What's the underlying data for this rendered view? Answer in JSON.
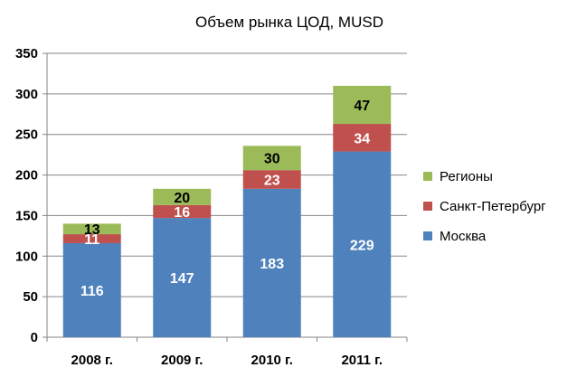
{
  "chart_data": {
    "type": "bar",
    "stacked": true,
    "title": "Объем рынка ЦОД, MUSD",
    "xlabel": "",
    "ylabel": "",
    "categories": [
      "2008 г.",
      "2009 г.",
      "2010 г.",
      "2011 г."
    ],
    "ylim": [
      0,
      350
    ],
    "yticks": [
      0,
      50,
      100,
      150,
      200,
      250,
      300,
      350
    ],
    "grid": true,
    "legend_position": "right",
    "series": [
      {
        "name": "Москва",
        "values": [
          116,
          147,
          183,
          229
        ],
        "color": "#4F81BD",
        "label_color": "#FFFFFF"
      },
      {
        "name": "Санкт-Петербург",
        "values": [
          11,
          16,
          23,
          34
        ],
        "color": "#C0504D",
        "label_color": "#FFFFFF"
      },
      {
        "name": "Регионы",
        "values": [
          13,
          20,
          30,
          47
        ],
        "color": "#9BBB59",
        "label_color": "#000000"
      }
    ],
    "legend_order": [
      "Регионы",
      "Санкт-Петербург",
      "Москва"
    ]
  }
}
